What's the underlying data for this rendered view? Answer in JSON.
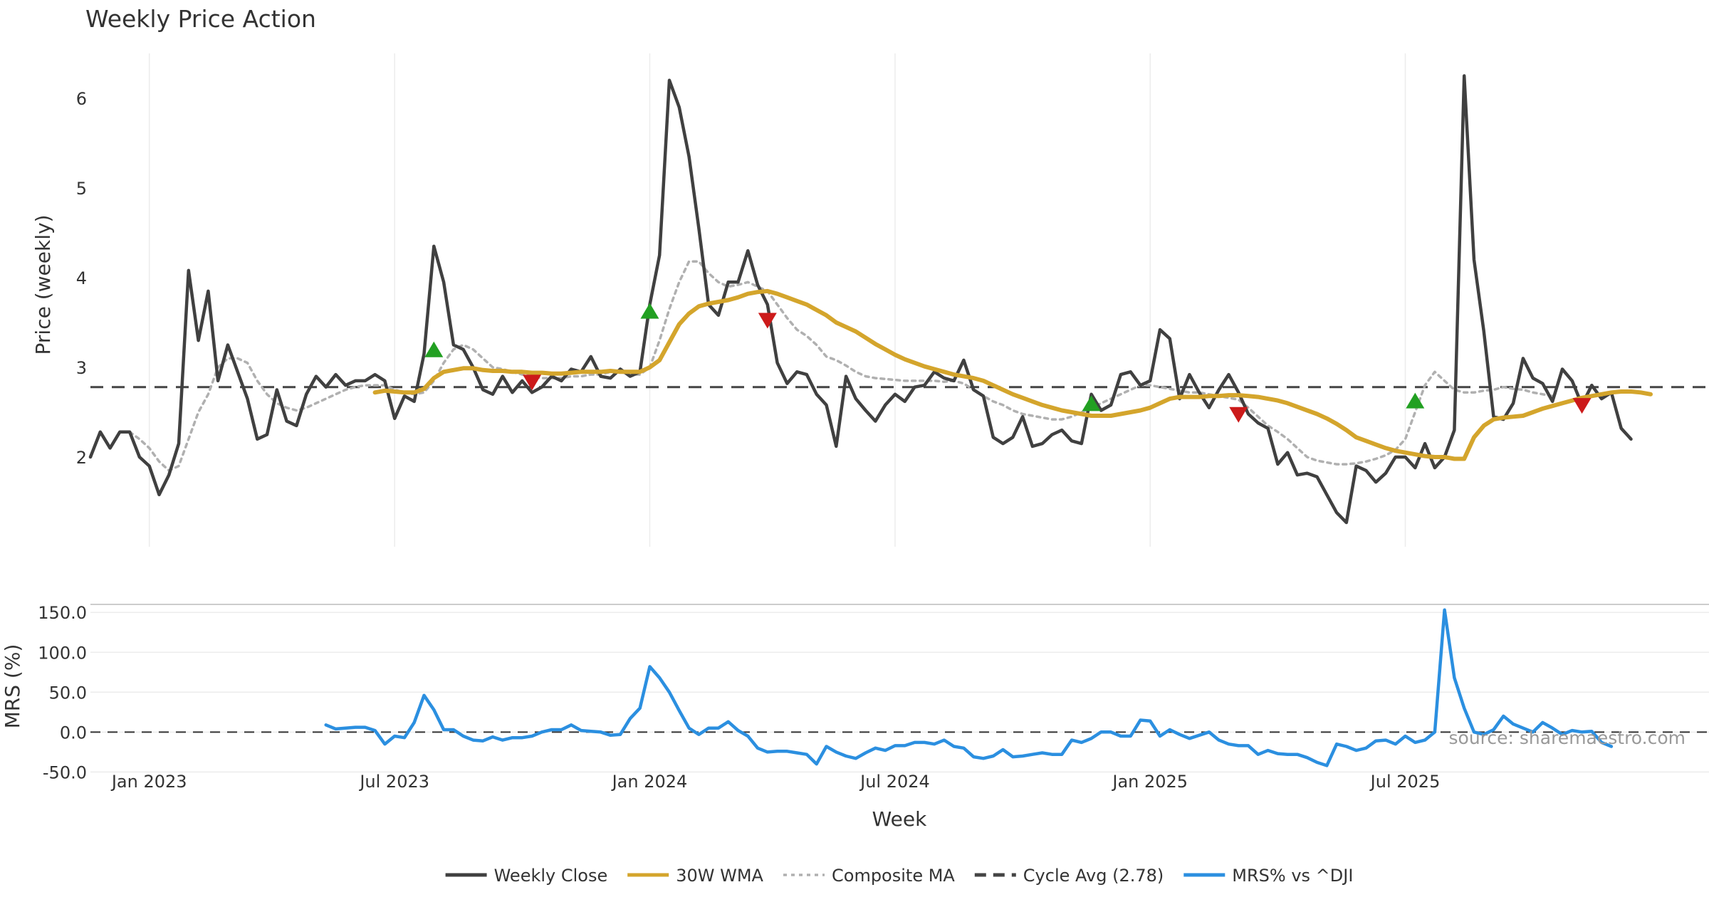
{
  "chart_data": {
    "type": "line",
    "title": "Weekly Price Action",
    "xlabel": "Week",
    "x_ticks": [
      "Jan 2023",
      "Jul 2023",
      "Jan 2024",
      "Jul 2024",
      "Jan 2025",
      "Jul 2025"
    ],
    "x_tick_index": [
      6,
      31,
      57,
      82,
      108,
      134
    ],
    "source": "source: sharemaestro.com",
    "price_panel": {
      "ylabel": "Price (weekly)",
      "y_ticks": [
        2,
        3,
        4,
        5,
        6
      ],
      "ylim": [
        1.0,
        6.5
      ],
      "cycle_avg": 2.78,
      "series": [
        {
          "name": "Weekly Close",
          "color": "#404040",
          "start": 0,
          "values": [
            2.0,
            2.28,
            2.1,
            2.28,
            2.28,
            2.0,
            1.9,
            1.58,
            1.8,
            2.15,
            4.08,
            3.3,
            3.85,
            2.85,
            3.25,
            2.95,
            2.65,
            2.2,
            2.25,
            2.75,
            2.4,
            2.35,
            2.7,
            2.9,
            2.78,
            2.92,
            2.8,
            2.85,
            2.85,
            2.92,
            2.85,
            2.43,
            2.68,
            2.62,
            3.15,
            4.35,
            3.95,
            3.25,
            3.2,
            3.0,
            2.75,
            2.7,
            2.9,
            2.72,
            2.85,
            2.72,
            2.78,
            2.9,
            2.85,
            2.98,
            2.95,
            3.12,
            2.9,
            2.88,
            2.98,
            2.9,
            2.95,
            3.7,
            4.25,
            6.2,
            5.9,
            5.35,
            4.55,
            3.7,
            3.58,
            3.95,
            3.95,
            4.3,
            3.92,
            3.7,
            3.05,
            2.82,
            2.95,
            2.92,
            2.7,
            2.58,
            2.12,
            2.9,
            2.65,
            2.52,
            2.4,
            2.58,
            2.7,
            2.62,
            2.78,
            2.8,
            2.95,
            2.88,
            2.85,
            3.08,
            2.75,
            2.68,
            2.22,
            2.15,
            2.22,
            2.45,
            2.12,
            2.15,
            2.25,
            2.3,
            2.18,
            2.15,
            2.7,
            2.52,
            2.58,
            2.92,
            2.95,
            2.8,
            2.85,
            3.42,
            3.32,
            2.65,
            2.92,
            2.72,
            2.55,
            2.75,
            2.92,
            2.72,
            2.48,
            2.38,
            2.32,
            1.92,
            2.05,
            1.8,
            1.82,
            1.78,
            1.58,
            1.38,
            1.27,
            1.9,
            1.85,
            1.72,
            1.82,
            2.0,
            2.0,
            1.88,
            2.15,
            1.88,
            2.0,
            2.3,
            6.25,
            4.2,
            3.4,
            2.45,
            2.42,
            2.6,
            3.1,
            2.88,
            2.82,
            2.62,
            2.98,
            2.85,
            2.58,
            2.8,
            2.65,
            2.72,
            2.32,
            2.2
          ]
        },
        {
          "name": "30W WMA",
          "color": "#d4a52c",
          "start": 29,
          "values": [
            2.72,
            2.74,
            2.73,
            2.72,
            2.72,
            2.76,
            2.88,
            2.95,
            2.97,
            2.99,
            2.99,
            2.97,
            2.96,
            2.96,
            2.95,
            2.95,
            2.94,
            2.94,
            2.93,
            2.93,
            2.94,
            2.95,
            2.95,
            2.95,
            2.96,
            2.95,
            2.95,
            2.95,
            3.0,
            3.08,
            3.28,
            3.48,
            3.6,
            3.68,
            3.71,
            3.73,
            3.75,
            3.78,
            3.82,
            3.84,
            3.85,
            3.82,
            3.78,
            3.74,
            3.7,
            3.64,
            3.58,
            3.5,
            3.45,
            3.4,
            3.33,
            3.26,
            3.2,
            3.14,
            3.09,
            3.05,
            3.01,
            2.98,
            2.95,
            2.92,
            2.9,
            2.88,
            2.85,
            2.8,
            2.75,
            2.7,
            2.66,
            2.62,
            2.58,
            2.55,
            2.52,
            2.5,
            2.48,
            2.46,
            2.46,
            2.46,
            2.48,
            2.5,
            2.52,
            2.55,
            2.6,
            2.65,
            2.67,
            2.67,
            2.67,
            2.68,
            2.68,
            2.69,
            2.69,
            2.68,
            2.67,
            2.65,
            2.63,
            2.6,
            2.56,
            2.52,
            2.48,
            2.43,
            2.37,
            2.3,
            2.22,
            2.18,
            2.14,
            2.1,
            2.07,
            2.05,
            2.03,
            2.01,
            2.0,
            2.0,
            1.98,
            1.98,
            2.22,
            2.35,
            2.42,
            2.44,
            2.45,
            2.46,
            2.5,
            2.54,
            2.57,
            2.6,
            2.63,
            2.66,
            2.68,
            2.7,
            2.72,
            2.73,
            2.73,
            2.72,
            2.7
          ]
        },
        {
          "name": "Composite MA",
          "color": "#b0b0b0",
          "start": 4,
          "values": [
            2.28,
            2.2,
            2.1,
            1.95,
            1.85,
            1.9,
            2.2,
            2.5,
            2.7,
            3.0,
            3.1,
            3.1,
            3.05,
            2.85,
            2.7,
            2.6,
            2.55,
            2.52,
            2.55,
            2.6,
            2.65,
            2.7,
            2.75,
            2.78,
            2.8,
            2.8,
            2.8,
            2.75,
            2.72,
            2.7,
            2.72,
            2.85,
            3.05,
            3.2,
            3.25,
            3.2,
            3.1,
            3.0,
            2.98,
            2.95,
            2.92,
            2.9,
            2.88,
            2.88,
            2.88,
            2.9,
            2.9,
            2.92,
            2.92,
            2.95,
            2.95,
            2.92,
            2.92,
            3.0,
            3.3,
            3.65,
            3.95,
            4.18,
            4.18,
            4.05,
            3.95,
            3.9,
            3.92,
            3.95,
            3.9,
            3.85,
            3.7,
            3.55,
            3.42,
            3.35,
            3.25,
            3.12,
            3.08,
            3.02,
            2.95,
            2.9,
            2.88,
            2.87,
            2.86,
            2.85,
            2.85,
            2.85,
            2.85,
            2.84,
            2.85,
            2.82,
            2.75,
            2.68,
            2.62,
            2.58,
            2.52,
            2.48,
            2.46,
            2.44,
            2.42,
            2.42,
            2.45,
            2.5,
            2.55,
            2.6,
            2.65,
            2.7,
            2.75,
            2.8,
            2.8,
            2.78,
            2.76,
            2.74,
            2.72,
            2.72,
            2.7,
            2.68,
            2.66,
            2.64,
            2.55,
            2.45,
            2.35,
            2.28,
            2.2,
            2.1,
            2.0,
            1.96,
            1.94,
            1.92,
            1.92,
            1.93,
            1.95,
            1.98,
            2.02,
            2.08,
            2.2,
            2.5,
            2.8,
            2.95,
            2.85,
            2.75,
            2.72,
            2.72,
            2.74,
            2.75,
            2.78,
            2.76,
            2.75,
            2.72,
            2.7,
            2.68
          ]
        }
      ],
      "signals_up": [
        {
          "index": 35,
          "value": 3.2
        },
        {
          "index": 57,
          "value": 3.63
        },
        {
          "index": 102,
          "value": 2.6
        },
        {
          "index": 135,
          "value": 2.63
        }
      ],
      "signals_down": [
        {
          "index": 45,
          "value": 2.83
        },
        {
          "index": 69,
          "value": 3.52
        },
        {
          "index": 117,
          "value": 2.47
        },
        {
          "index": 152,
          "value": 2.57
        }
      ],
      "colors": {
        "up": "#22a022",
        "down": "#cc1a1a",
        "cycle_avg": "#444444"
      }
    },
    "mrs_panel": {
      "ylabel": "MRS (%)",
      "y_ticks": [
        -50.0,
        0.0,
        50.0,
        100.0,
        150.0
      ],
      "ylim": [
        -55,
        160
      ],
      "series": [
        {
          "name": "MRS% vs ^DJI",
          "color": "#2b8fe0",
          "start": 24,
          "values": [
            9,
            4,
            5,
            6,
            6,
            2,
            -15,
            -5,
            -7,
            12,
            46,
            28,
            3,
            3,
            -5,
            -10,
            -11,
            -6,
            -10,
            -7,
            -7,
            -5,
            0,
            3,
            3,
            9,
            2,
            1,
            0,
            -4,
            -3,
            17,
            30,
            82,
            68,
            50,
            27,
            5,
            -3,
            5,
            5,
            13,
            2,
            -5,
            -20,
            -25,
            -24,
            -24,
            -26,
            -28,
            -40,
            -18,
            -25,
            -30,
            -33,
            -26,
            -20,
            -23,
            -17,
            -17,
            -13,
            -13,
            -15,
            -10,
            -18,
            -20,
            -31,
            -33,
            -30,
            -22,
            -31,
            -30,
            -28,
            -26,
            -28,
            -28,
            -10,
            -13,
            -8,
            0,
            0,
            -5,
            -5,
            15,
            14,
            -5,
            3,
            -3,
            -8,
            -4,
            0,
            -10,
            -15,
            -17,
            -17,
            -28,
            -23,
            -27,
            -28,
            -28,
            -32,
            -38,
            -42,
            -15,
            -18,
            -23,
            -20,
            -11,
            -10,
            -15,
            -5,
            -13,
            -10,
            0,
            153,
            68,
            30,
            0,
            -3,
            3,
            20,
            10,
            5,
            0,
            12,
            5,
            -3,
            2,
            0,
            1,
            -13,
            -18
          ]
        }
      ]
    },
    "legend": [
      {
        "name": "Weekly Close",
        "color": "#404040",
        "style": "solid"
      },
      {
        "name": "30W WMA",
        "color": "#d4a52c",
        "style": "solid"
      },
      {
        "name": "Composite MA",
        "color": "#b0b0b0",
        "style": "dotted"
      },
      {
        "name": "Cycle Avg (2.78)",
        "color": "#444444",
        "style": "dashed"
      },
      {
        "name": "MRS% vs ^DJI",
        "color": "#2b8fe0",
        "style": "solid"
      }
    ],
    "legend_position": "bottom-center",
    "grid": true
  }
}
